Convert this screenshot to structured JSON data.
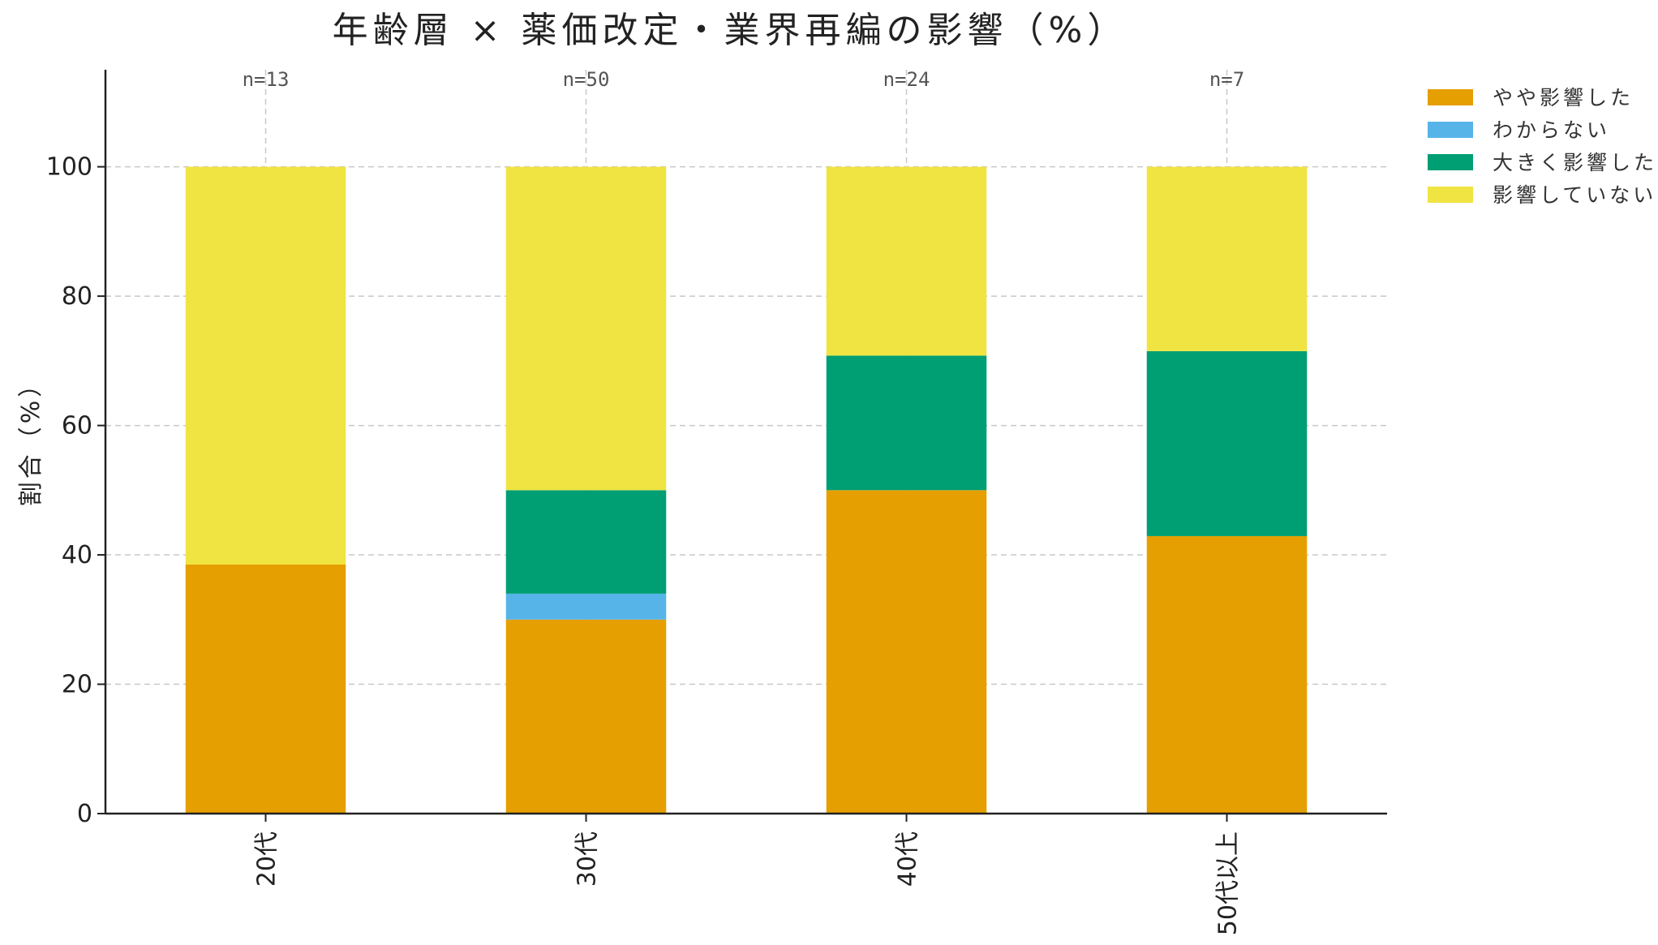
{
  "chart_data": {
    "type": "bar",
    "stacked": true,
    "title": "年齢層 × 薬価改定・業界再編の影響（%）",
    "ylabel": "割合（%）",
    "xlabel": "",
    "ylim": [
      0,
      115
    ],
    "yticks": [
      0,
      20,
      40,
      60,
      80,
      100
    ],
    "grid": true,
    "legend_position": "top-right",
    "categories": [
      "20代",
      "30代",
      "40代",
      "50代以上"
    ],
    "sample_sizes": [
      "n=13",
      "n=50",
      "n=24",
      "n=7"
    ],
    "series": [
      {
        "name": "やや影響した",
        "color": "#E69F00",
        "values": [
          38.5,
          30.0,
          50.0,
          42.9
        ]
      },
      {
        "name": "わからない",
        "color": "#56B4E9",
        "values": [
          0,
          4.0,
          0,
          0
        ]
      },
      {
        "name": "大きく影響した",
        "color": "#009E73",
        "values": [
          0,
          16.0,
          20.8,
          28.6
        ]
      },
      {
        "name": "影響していない",
        "color": "#F0E442",
        "values": [
          61.5,
          50.0,
          29.2,
          28.5
        ]
      }
    ]
  }
}
